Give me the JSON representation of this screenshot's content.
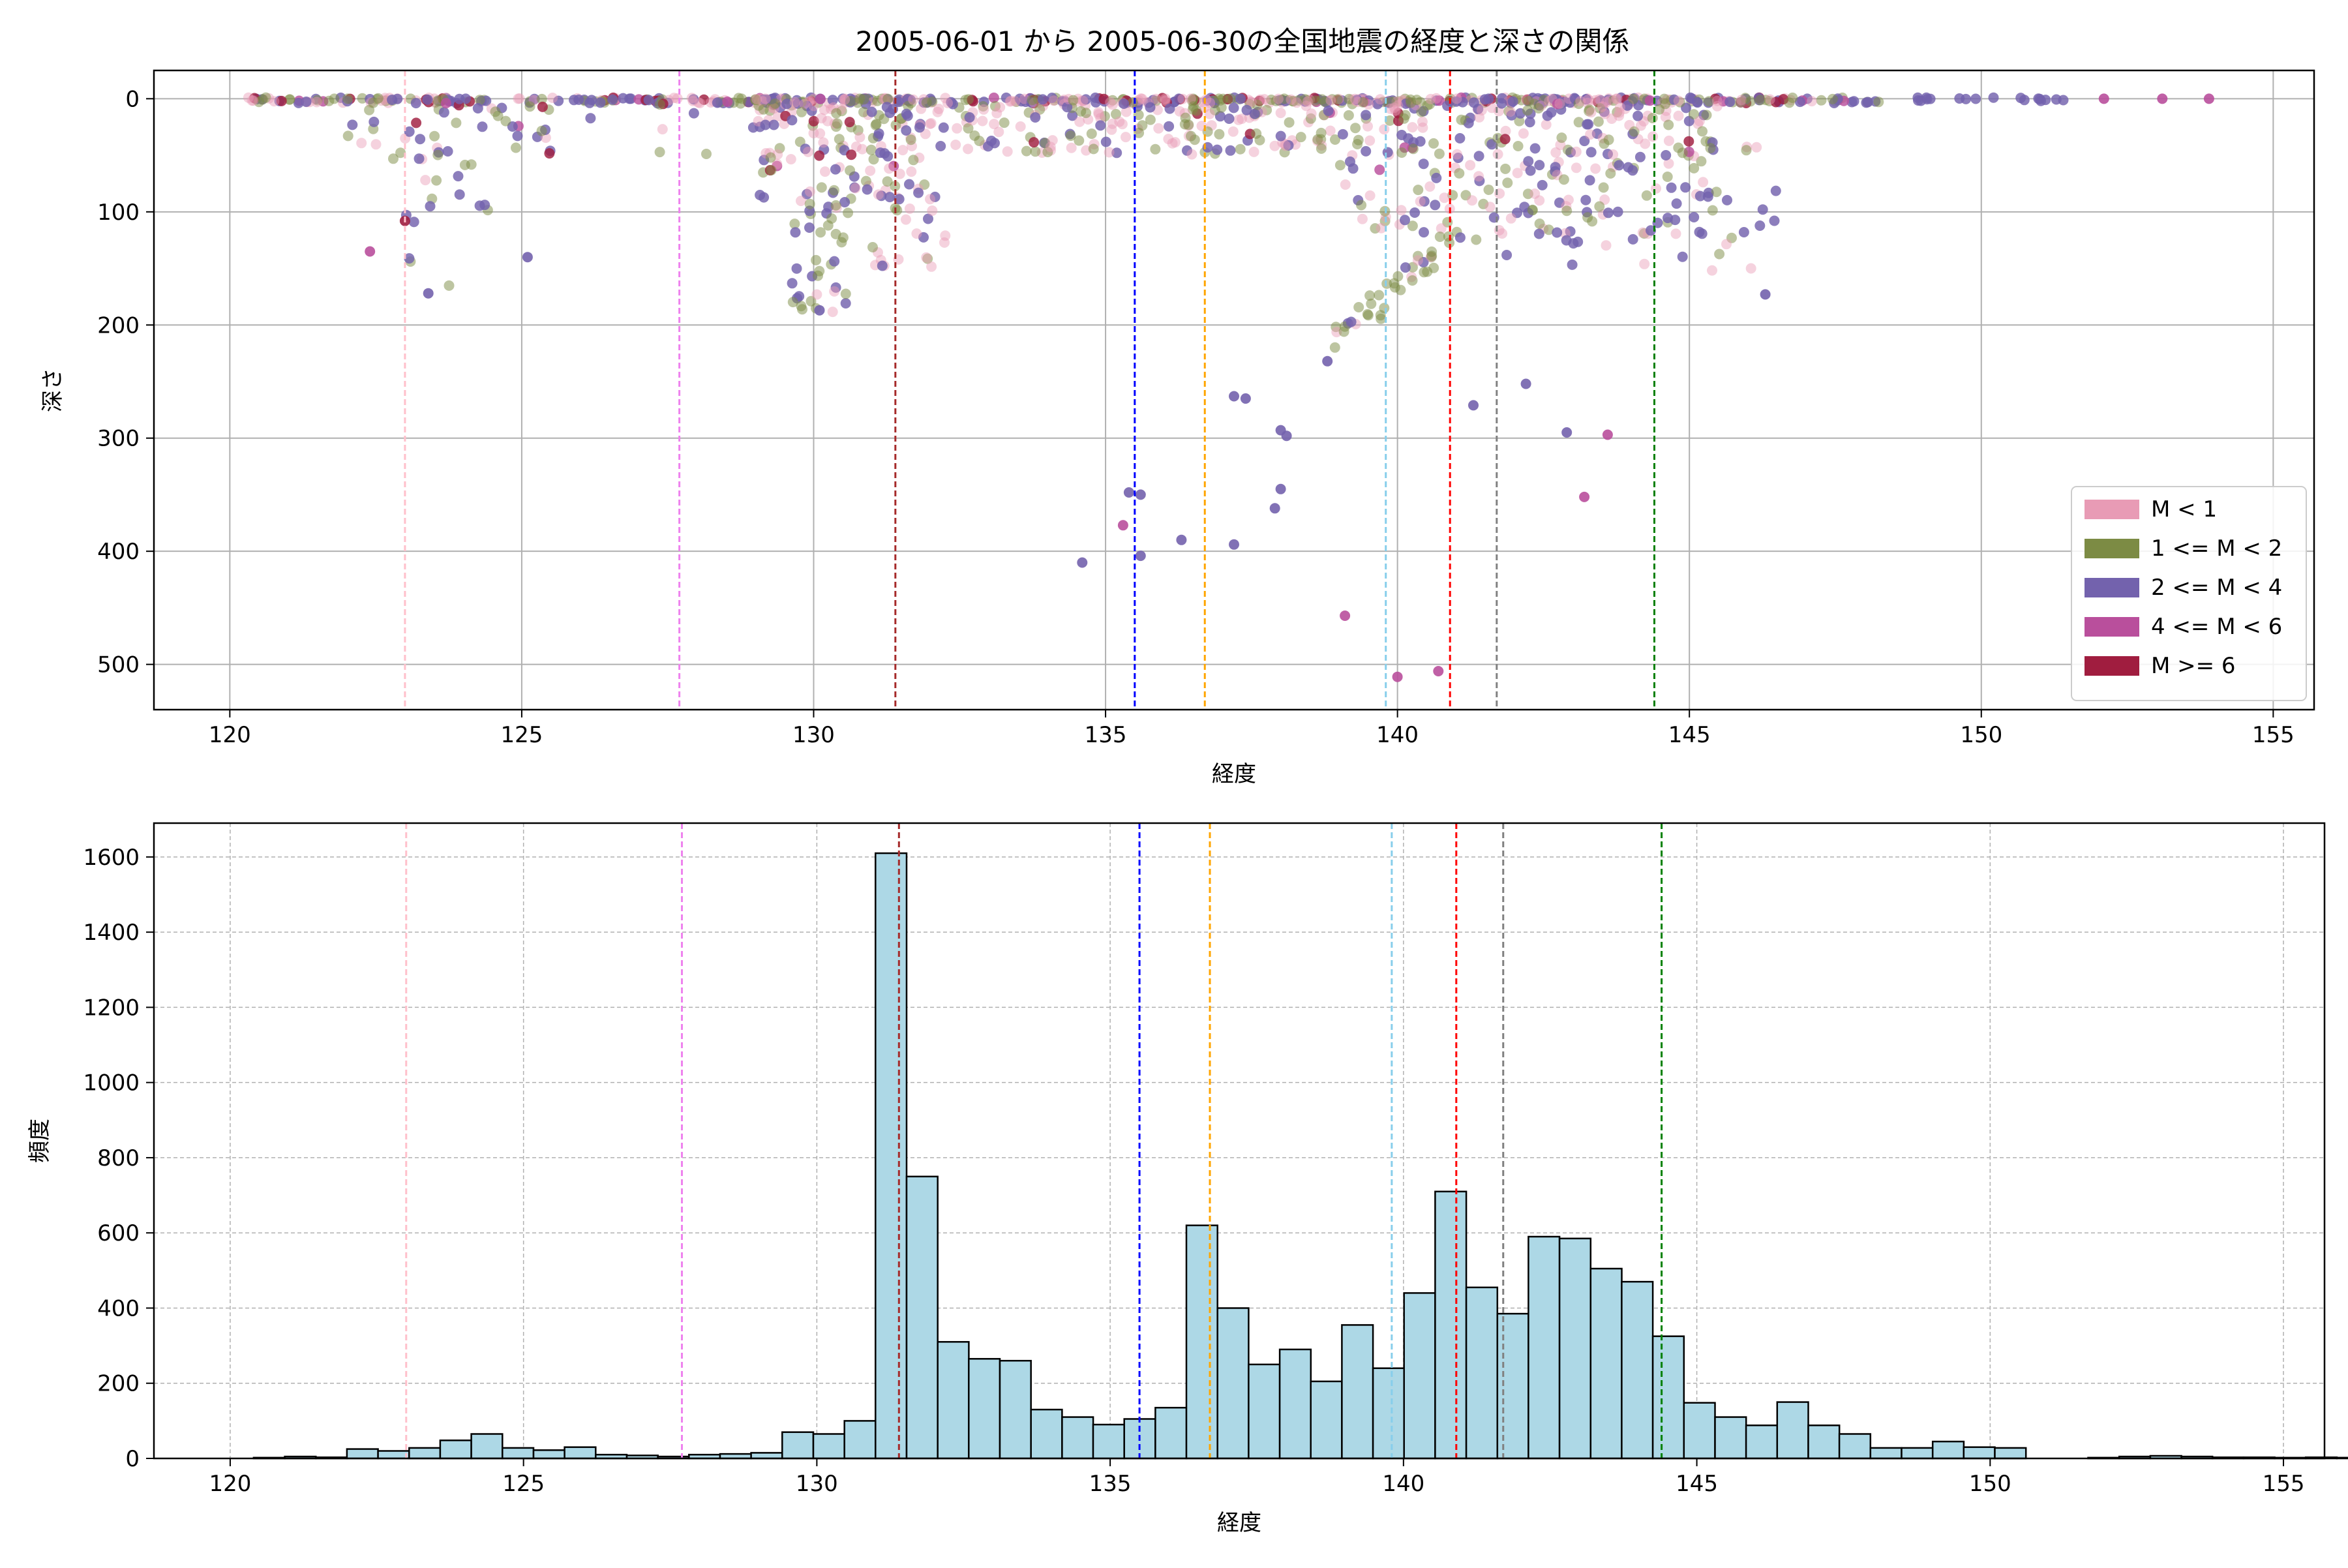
{
  "title": "2005-06-01 から 2005-06-30の全国地震の経度と深さの関係",
  "colors": {
    "m_lt1": "#e89bb5",
    "m_1_2": "#7c8b44",
    "m_2_4": "#7362ad",
    "m_4_6": "#b94f9c",
    "m_ge6": "#a01d3f",
    "hist_fill": "#add8e6"
  },
  "vlines": [
    {
      "x": 123.0,
      "color": "#ffc0cb"
    },
    {
      "x": 127.7,
      "color": "#ee82ee"
    },
    {
      "x": 131.4,
      "color": "#a52a2a"
    },
    {
      "x": 135.5,
      "color": "#0000ff"
    },
    {
      "x": 136.7,
      "color": "#ffa500"
    },
    {
      "x": 139.8,
      "color": "#87ceeb"
    },
    {
      "x": 140.9,
      "color": "#ff0000"
    },
    {
      "x": 141.7,
      "color": "#808080"
    },
    {
      "x": 144.4,
      "color": "#008000"
    }
  ],
  "chart_data": [
    {
      "type": "scatter",
      "xlabel": "経度",
      "ylabel": "深さ",
      "xlim": [
        118.7,
        155.7
      ],
      "ylim": [
        540,
        -25
      ],
      "y_inverted": true,
      "xticks": [
        120,
        125,
        130,
        135,
        140,
        145,
        150,
        155
      ],
      "yticks": [
        0,
        100,
        200,
        300,
        400,
        500
      ],
      "grid": true,
      "legend_position": "bottom-right",
      "legend": [
        {
          "label": "M < 1",
          "color_key": "m_lt1"
        },
        {
          "label": "1 <= M < 2",
          "color_key": "m_1_2"
        },
        {
          "label": "2 <= M < 4",
          "color_key": "m_2_4"
        },
        {
          "label": "4 <= M < 6",
          "color_key": "m_4_6"
        },
        {
          "label": "M >= 6",
          "color_key": "m_ge6"
        }
      ],
      "notable_points": [
        {
          "x": 122.4,
          "y": 135,
          "cls": "m_4_6"
        },
        {
          "x": 123.0,
          "y": 108,
          "cls": "m_ge6"
        },
        {
          "x": 123.4,
          "y": 172,
          "cls": "m_2_4"
        },
        {
          "x": 125.1,
          "y": 140,
          "cls": "m_2_4"
        },
        {
          "x": 130.1,
          "y": 187,
          "cls": "m_2_4"
        },
        {
          "x": 134.6,
          "y": 410,
          "cls": "m_2_4"
        },
        {
          "x": 135.3,
          "y": 377,
          "cls": "m_4_6"
        },
        {
          "x": 135.4,
          "y": 348,
          "cls": "m_2_4"
        },
        {
          "x": 135.6,
          "y": 350,
          "cls": "m_2_4"
        },
        {
          "x": 135.6,
          "y": 404,
          "cls": "m_2_4"
        },
        {
          "x": 136.3,
          "y": 390,
          "cls": "m_2_4"
        },
        {
          "x": 137.2,
          "y": 394,
          "cls": "m_2_4"
        },
        {
          "x": 137.2,
          "y": 263,
          "cls": "m_2_4"
        },
        {
          "x": 137.4,
          "y": 265,
          "cls": "m_2_4"
        },
        {
          "x": 137.9,
          "y": 362,
          "cls": "m_2_4"
        },
        {
          "x": 138.0,
          "y": 345,
          "cls": "m_2_4"
        },
        {
          "x": 138.0,
          "y": 293,
          "cls": "m_2_4"
        },
        {
          "x": 138.1,
          "y": 298,
          "cls": "m_2_4"
        },
        {
          "x": 138.8,
          "y": 232,
          "cls": "m_2_4"
        },
        {
          "x": 139.1,
          "y": 457,
          "cls": "m_4_6"
        },
        {
          "x": 140.0,
          "y": 511,
          "cls": "m_4_6"
        },
        {
          "x": 140.7,
          "y": 506,
          "cls": "m_4_6"
        },
        {
          "x": 141.3,
          "y": 271,
          "cls": "m_2_4"
        },
        {
          "x": 142.2,
          "y": 252,
          "cls": "m_2_4"
        },
        {
          "x": 142.9,
          "y": 295,
          "cls": "m_2_4"
        },
        {
          "x": 143.6,
          "y": 297,
          "cls": "m_4_6"
        },
        {
          "x": 143.2,
          "y": 352,
          "cls": "m_4_6"
        },
        {
          "x": 146.3,
          "y": 173,
          "cls": "m_2_4"
        },
        {
          "x": 152.1,
          "y": 0,
          "cls": "m_4_6"
        },
        {
          "x": 153.1,
          "y": 0,
          "cls": "m_4_6"
        },
        {
          "x": 153.9,
          "y": 0,
          "cls": "m_4_6"
        }
      ]
    },
    {
      "type": "bar",
      "xlabel": "経度",
      "ylabel": "頻度",
      "xlim": [
        118.7,
        155.7
      ],
      "ylim": [
        0,
        1690
      ],
      "xticks": [
        120,
        125,
        130,
        135,
        140,
        145,
        150,
        155
      ],
      "yticks": [
        0,
        200,
        400,
        600,
        800,
        1000,
        1200,
        1400,
        1600
      ],
      "grid": true,
      "bin_start": 120.4,
      "bin_width": 0.53,
      "values": [
        2,
        5,
        3,
        25,
        20,
        28,
        48,
        65,
        28,
        22,
        30,
        10,
        8,
        5,
        10,
        12,
        15,
        70,
        65,
        100,
        1610,
        750,
        310,
        265,
        260,
        130,
        110,
        90,
        105,
        135,
        620,
        400,
        250,
        290,
        205,
        355,
        240,
        440,
        710,
        455,
        385,
        590,
        585,
        505,
        470,
        325,
        148,
        110,
        88,
        150,
        88,
        65,
        28,
        28,
        45,
        30,
        28,
        0,
        0,
        2,
        5,
        7,
        5,
        3,
        3,
        2,
        3,
        2,
        1,
        2
      ]
    }
  ]
}
